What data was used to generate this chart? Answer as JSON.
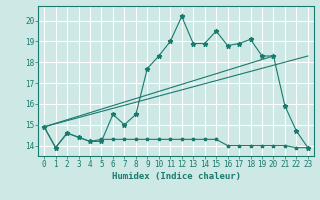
{
  "title": "",
  "xlabel": "Humidex (Indice chaleur)",
  "ylabel": "",
  "bg_color": "#cde8e5",
  "grid_color": "#ffffff",
  "line_color": "#1a7a6e",
  "xlim": [
    -0.5,
    23.5
  ],
  "ylim": [
    13.5,
    20.7
  ],
  "yticks": [
    14,
    15,
    16,
    17,
    18,
    19,
    20
  ],
  "xticks": [
    0,
    1,
    2,
    3,
    4,
    5,
    6,
    7,
    8,
    9,
    10,
    11,
    12,
    13,
    14,
    15,
    16,
    17,
    18,
    19,
    20,
    21,
    22,
    23
  ],
  "series1_x": [
    0,
    1,
    2,
    3,
    4,
    5,
    6,
    7,
    8,
    9,
    10,
    11,
    12,
    13,
    14,
    15,
    16,
    17,
    18,
    19,
    20,
    21,
    22,
    23
  ],
  "series1_y": [
    14.9,
    13.9,
    14.6,
    14.4,
    14.2,
    14.2,
    15.5,
    15.0,
    15.5,
    17.7,
    18.3,
    19.0,
    20.2,
    18.9,
    18.9,
    19.5,
    18.8,
    18.9,
    19.1,
    18.3,
    18.3,
    15.9,
    14.7,
    13.9
  ],
  "series2_x": [
    0,
    1,
    2,
    3,
    4,
    5,
    6,
    7,
    8,
    9,
    10,
    11,
    12,
    13,
    14,
    15,
    16,
    17,
    18,
    19,
    20,
    21,
    22,
    23
  ],
  "series2_y": [
    14.9,
    13.9,
    14.6,
    14.4,
    14.2,
    14.3,
    14.3,
    14.3,
    14.3,
    14.3,
    14.3,
    14.3,
    14.3,
    14.3,
    14.3,
    14.3,
    14.0,
    14.0,
    14.0,
    14.0,
    14.0,
    14.0,
    13.9,
    13.9
  ],
  "series3_x": [
    0,
    23
  ],
  "series3_y": [
    14.9,
    18.3
  ],
  "series4_x": [
    0,
    20
  ],
  "series4_y": [
    14.9,
    18.3
  ],
  "xlabel_fontsize": 6.5,
  "tick_fontsize": 5.5
}
